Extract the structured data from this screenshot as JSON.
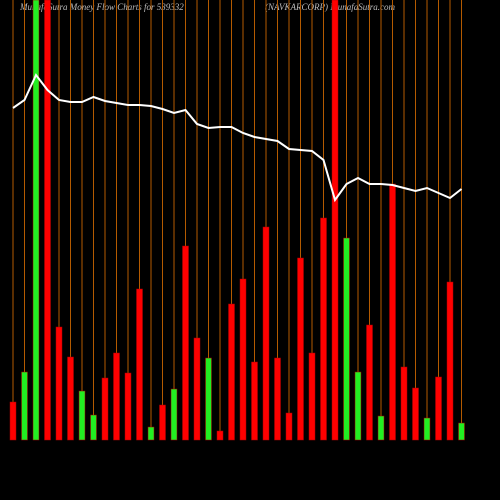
{
  "chart_data": {
    "type": "bar",
    "title": "MunafaSutra  Money Flow  Charts for 539332",
    "subtitle": "(NAVKARCORP) MunafaSutra.com",
    "categories": [
      null,
      null,
      null,
      null,
      null,
      null,
      null,
      null,
      null,
      null,
      null,
      null,
      null,
      null,
      null,
      null,
      null,
      null,
      null,
      null,
      null,
      null,
      null,
      null,
      null,
      null,
      null,
      null,
      null,
      null,
      null,
      null,
      null,
      null,
      null,
      null,
      null,
      null,
      null,
      null
    ],
    "values": [
      38,
      68,
      440,
      440,
      113,
      83,
      49,
      25,
      62,
      87,
      67,
      151,
      13,
      35,
      51,
      194,
      102,
      82,
      9,
      136,
      161,
      78,
      213,
      82,
      27,
      182,
      87,
      222,
      440,
      202,
      68,
      115,
      24,
      256,
      73,
      52,
      22,
      63,
      158,
      17
    ],
    "colors": [
      "#ff0000",
      "#22ee22",
      "#22ee22",
      "#ff0000",
      "#ff0000",
      "#ff0000",
      "#22ee22",
      "#22ee22",
      "#ff0000",
      "#ff0000",
      "#ff0000",
      "#ff0000",
      "#22ee22",
      "#ff0000",
      "#22ee22",
      "#ff0000",
      "#ff0000",
      "#22ee22",
      "#ff0000",
      "#ff0000",
      "#ff0000",
      "#ff0000",
      "#ff0000",
      "#ff0000",
      "#ff0000",
      "#ff0000",
      "#ff0000",
      "#ff0000",
      "#ff0000",
      "#22ee22",
      "#22ee22",
      "#ff0000",
      "#22ee22",
      "#ff0000",
      "#ff0000",
      "#ff0000",
      "#22ee22",
      "#ff0000",
      "#ff0000",
      "#22ee22"
    ],
    "line": {
      "color": "#ffffff",
      "values": [
        332,
        340,
        365,
        350,
        340,
        338,
        338,
        343,
        339,
        337,
        335,
        335,
        334,
        331,
        327,
        330,
        316,
        312,
        313,
        313,
        307,
        303,
        301,
        299,
        291,
        290,
        289,
        280,
        240,
        256,
        262,
        256,
        256,
        255,
        252,
        249,
        252,
        247,
        242,
        251
      ]
    },
    "ylim": [
      0,
      440
    ],
    "grid_color": "#b35a00"
  }
}
